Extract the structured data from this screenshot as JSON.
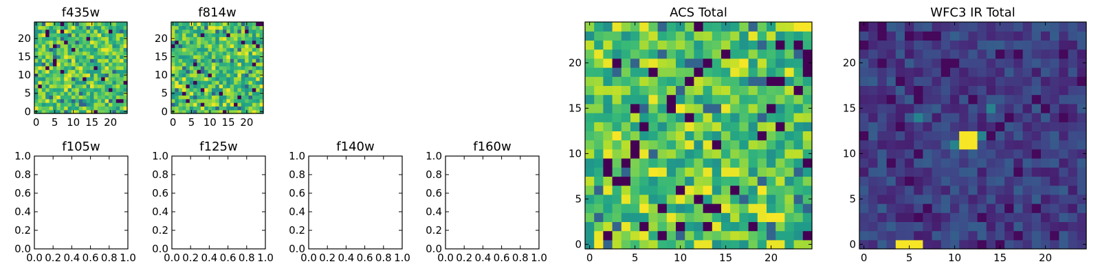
{
  "chart_data": [
    {
      "type": "heatmap",
      "title": "f435w",
      "colormap": "viridis",
      "grid_size": 25,
      "seed": 435,
      "distribution": "bright",
      "xlim": [
        -0.5,
        24.5
      ],
      "ylim": [
        -0.5,
        24.5
      ],
      "xticks": [
        0,
        5,
        10,
        15,
        20
      ],
      "yticks": [
        0,
        5,
        10,
        15,
        20
      ]
    },
    {
      "type": "heatmap",
      "title": "f814w",
      "colormap": "viridis",
      "grid_size": 25,
      "seed": 814,
      "distribution": "bright",
      "xlim": [
        -0.5,
        24.5
      ],
      "ylim": [
        -0.5,
        24.5
      ],
      "xticks": [
        0,
        5,
        10,
        15,
        20
      ],
      "yticks": [
        0,
        5,
        10,
        15,
        20
      ]
    },
    {
      "type": "heatmap",
      "title": "f105w",
      "empty": true,
      "xlim": [
        0,
        1
      ],
      "ylim": [
        0,
        1
      ],
      "xticks": [
        "0.0",
        "0.2",
        "0.4",
        "0.6",
        "0.8",
        "1.0"
      ],
      "yticks": [
        "0.0",
        "0.2",
        "0.4",
        "0.6",
        "0.8",
        "1.0"
      ]
    },
    {
      "type": "heatmap",
      "title": "f125w",
      "empty": true,
      "xlim": [
        0,
        1
      ],
      "ylim": [
        0,
        1
      ],
      "xticks": [
        "0.0",
        "0.2",
        "0.4",
        "0.6",
        "0.8",
        "1.0"
      ],
      "yticks": [
        "0.0",
        "0.2",
        "0.4",
        "0.6",
        "0.8",
        "1.0"
      ]
    },
    {
      "type": "heatmap",
      "title": "f140w",
      "empty": true,
      "xlim": [
        0,
        1
      ],
      "ylim": [
        0,
        1
      ],
      "xticks": [
        "0.0",
        "0.2",
        "0.4",
        "0.6",
        "0.8",
        "1.0"
      ],
      "yticks": [
        "0.0",
        "0.2",
        "0.4",
        "0.6",
        "0.8",
        "1.0"
      ]
    },
    {
      "type": "heatmap",
      "title": "f160w",
      "empty": true,
      "xlim": [
        0,
        1
      ],
      "ylim": [
        0,
        1
      ],
      "xticks": [
        "0.0",
        "0.2",
        "0.4",
        "0.6",
        "0.8",
        "1.0"
      ],
      "yticks": [
        "0.0",
        "0.2",
        "0.4",
        "0.6",
        "0.8",
        "1.0"
      ]
    },
    {
      "type": "heatmap",
      "title": "ACS Total",
      "colormap": "viridis",
      "grid_size": 25,
      "seed": 2017,
      "distribution": "bright",
      "xlim": [
        -0.5,
        24.5
      ],
      "ylim": [
        -0.5,
        24.5
      ],
      "xticks": [
        0,
        5,
        10,
        15,
        20
      ],
      "yticks": [
        0,
        5,
        10,
        15,
        20
      ],
      "dark_cells": [
        [
          7,
          19
        ],
        [
          9,
          16
        ],
        [
          13,
          20
        ],
        [
          21,
          13
        ],
        [
          20,
          18
        ],
        [
          24,
          21
        ],
        [
          3,
          7
        ],
        [
          12,
          5
        ],
        [
          13,
          4
        ],
        [
          14,
          4
        ],
        [
          16,
          6
        ],
        [
          6,
          2
        ],
        [
          10,
          2
        ],
        [
          23,
          22
        ]
      ],
      "bright_cells": [
        [
          10,
          15
        ],
        [
          24,
          24
        ],
        [
          23,
          24
        ],
        [
          3,
          12
        ],
        [
          7,
          8
        ],
        [
          17,
          20
        ],
        [
          19,
          6
        ],
        [
          1,
          0
        ],
        [
          6,
          4
        ],
        [
          13,
          6
        ],
        [
          20,
          3
        ],
        [
          21,
          3
        ]
      ]
    },
    {
      "type": "heatmap",
      "title": "WFC3 IR Total",
      "colormap": "viridis",
      "grid_size": 25,
      "seed": 316,
      "distribution": "dark",
      "xlim": [
        -0.5,
        24.5
      ],
      "ylim": [
        -0.5,
        24.5
      ],
      "xticks": [
        0,
        5,
        10,
        15,
        20
      ],
      "yticks": [
        0,
        5,
        10,
        15,
        20
      ],
      "bright_cells": [
        [
          11,
          11
        ],
        [
          12,
          11
        ],
        [
          11,
          12
        ],
        [
          12,
          12
        ],
        [
          4,
          0
        ],
        [
          5,
          0
        ],
        [
          6,
          0
        ]
      ],
      "mid_cells": [
        [
          13,
          12
        ],
        [
          10,
          11
        ],
        [
          6,
          14
        ],
        [
          14,
          15
        ]
      ]
    }
  ]
}
